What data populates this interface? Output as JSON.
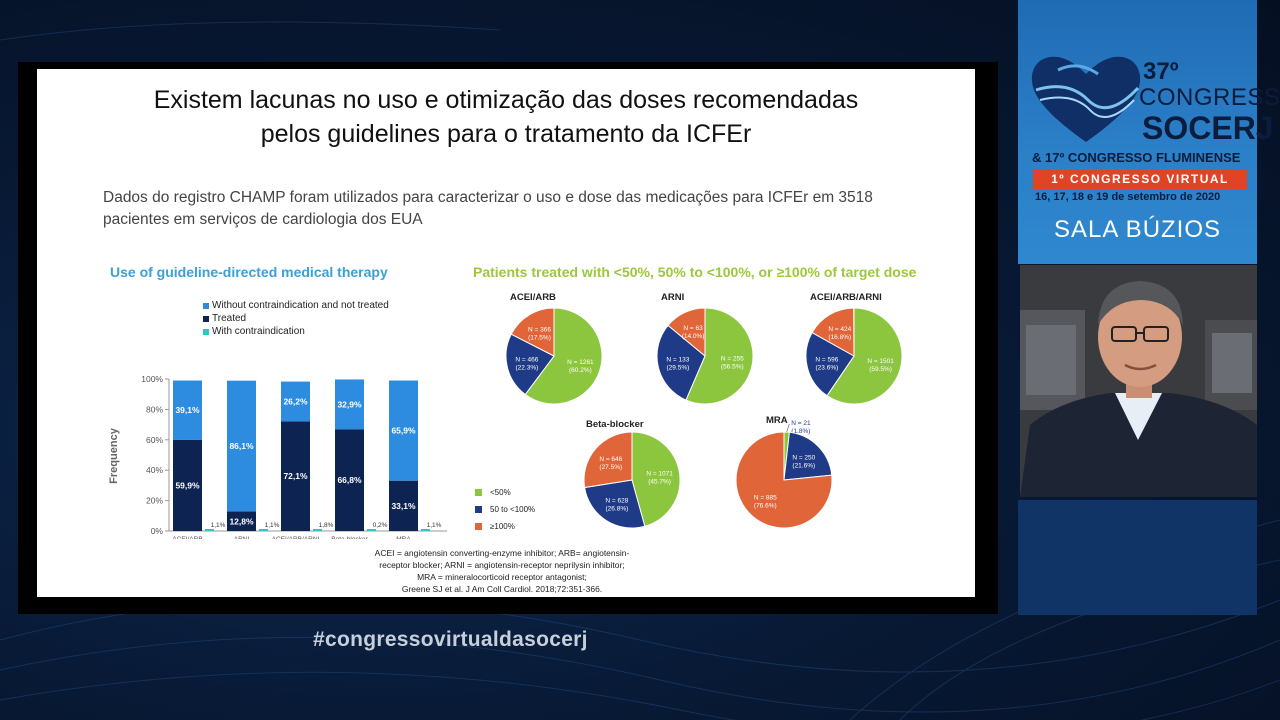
{
  "slide": {
    "title_line1": "Existem lacunas no uso e otimização das doses recomendadas",
    "title_line2": "pelos guidelines para o tratamento da ICFEr",
    "subtitle": "Dados do registro CHAMP foram utilizados para caracterizar o uso e dose das medicações para ICFEr em 3518 pacientes em serviços de cardiologia dos EUA",
    "left_panel_title": "Use of guideline-directed medical therapy",
    "right_panel_title": "Patients treated with <50%, 50% to <100%, or ≥100% of target dose",
    "footnote_lines": [
      "ACEI = angiotensin converting-enzyme inhibitor; ARB= angiotensin-",
      "receptor blocker; ARNI = angiotensin-receptor neprilysin inhibitor;",
      "MRA = mineralocorticoid receptor antagonist;",
      "Greene SJ et al. J Am Coll Cardiol. 2018;72:351-366."
    ]
  },
  "colors": {
    "not_treated": "#2d8be0",
    "treated": "#0d2352",
    "contraindication": "#2fc6c6",
    "lt50": "#8cc63f",
    "mid": "#1f3a86",
    "ge100": "#e0663a",
    "panel_left_title": "#3aa0d8",
    "panel_right_title": "#9cc83a"
  },
  "bar_legend": [
    "Without contraindication and not treated",
    "Treated",
    "With contraindication"
  ],
  "pie_legend": [
    "<50%",
    "50 to <100%",
    "≥100%"
  ],
  "chart_data": [
    {
      "type": "bar",
      "stacked": true,
      "ylabel": "Frequency",
      "ylim": [
        0,
        100
      ],
      "yticks": [
        "0%",
        "20%",
        "40%",
        "60%",
        "80%",
        "100%"
      ],
      "categories": [
        "ACEI/ARB",
        "ARNI",
        "ACEI/ARB/ARNI",
        "Beta-blocker",
        "MRA"
      ],
      "series": [
        {
          "name": "Treated",
          "values": [
            59.9,
            12.8,
            72.1,
            66.8,
            33.1
          ],
          "labels": [
            "59,9%",
            "12,8%",
            "72,1%",
            "66,8%",
            "33,1%"
          ]
        },
        {
          "name": "Without contraindication and not treated",
          "values": [
            39.1,
            86.1,
            26.2,
            32.9,
            65.9
          ],
          "labels": [
            "39,1%",
            "86,1%",
            "26,2%",
            "32,9%",
            "65,9%"
          ]
        },
        {
          "name": "With contraindication",
          "values": [
            1.1,
            1.1,
            1.8,
            0.2,
            1.1
          ],
          "labels": [
            "1,1%",
            "1,1%",
            "1,8%",
            "0,2%",
            "1,1%"
          ]
        }
      ]
    },
    {
      "type": "pie",
      "pies": [
        {
          "title": "ACEI/ARB",
          "slices": [
            {
              "name": "<50%",
              "value": 60.2,
              "label": [
                "N = 1261",
                "(60.2%)"
              ]
            },
            {
              "name": "50 to <100%",
              "value": 22.3,
              "label": [
                "N = 466",
                "(22.3%)"
              ]
            },
            {
              "name": "≥100%",
              "value": 17.5,
              "label": [
                "N = 366",
                "(17.5%)"
              ]
            }
          ]
        },
        {
          "title": "ARNI",
          "slices": [
            {
              "name": "<50%",
              "value": 56.5,
              "label": [
                "N = 255",
                "(56.5%)"
              ]
            },
            {
              "name": "50 to <100%",
              "value": 29.5,
              "label": [
                "N = 133",
                "(29.5%)"
              ]
            },
            {
              "name": "≥100%",
              "value": 14.0,
              "label": [
                "N = 63",
                "(14.0%)"
              ]
            }
          ]
        },
        {
          "title": "ACEI/ARB/ARNI",
          "slices": [
            {
              "name": "<50%",
              "value": 59.5,
              "label": [
                "N = 1501",
                "(59.5%)"
              ]
            },
            {
              "name": "50 to <100%",
              "value": 23.6,
              "label": [
                "N = 596",
                "(23.6%)"
              ]
            },
            {
              "name": "≥100%",
              "value": 16.8,
              "label": [
                "N = 424",
                "(16.8%)"
              ]
            }
          ]
        },
        {
          "title": "Beta-blocker",
          "slices": [
            {
              "name": "<50%",
              "value": 45.7,
              "label": [
                "N = 1071",
                "(45.7%)"
              ]
            },
            {
              "name": "50 to <100%",
              "value": 26.8,
              "label": [
                "N = 628",
                "(26.8%)"
              ]
            },
            {
              "name": "≥100%",
              "value": 27.5,
              "label": [
                "N = 646",
                "(27.5%)"
              ]
            }
          ]
        },
        {
          "title": "MRA",
          "slices": [
            {
              "name": "<50%",
              "value": 1.8,
              "label": [
                "N = 21",
                "(1.8%)"
              ]
            },
            {
              "name": "50 to <100%",
              "value": 21.6,
              "label": [
                "N = 250",
                "(21.6%)"
              ]
            },
            {
              "name": "≥100%",
              "value": 76.6,
              "label": [
                "N = 885",
                "(76.6%)"
              ]
            }
          ]
        }
      ]
    }
  ],
  "congress": {
    "number": "37º",
    "word": "CONGRESSO",
    "name": "SOCERJ",
    "secondary": "& 17º CONGRESSO FLUMINENSE",
    "virtual": "1º CONGRESSO VIRTUAL",
    "dates": "16, 17, 18 e 19 de setembro de 2020",
    "room": "SALA BÚZIOS"
  },
  "hashtag": "#congressovirtualdasocerj"
}
